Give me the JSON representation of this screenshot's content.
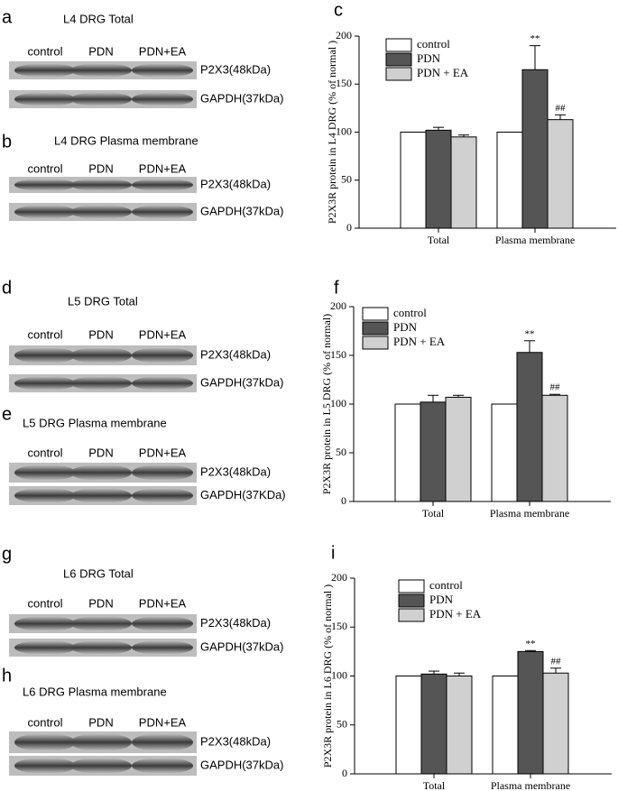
{
  "blots": [
    {
      "letter": "a",
      "title": "L4 DRG Total",
      "lanes": [
        "control",
        "PDN",
        "PDN+EA"
      ],
      "bands": [
        "P2X3(48kDa)",
        "GAPDH(37kDa)"
      ]
    },
    {
      "letter": "b",
      "title": "L4 DRG Plasma membrane",
      "lanes": [
        "control",
        "PDN",
        "PDN+EA"
      ],
      "bands": [
        "P2X3(48kDa)",
        "GAPDH(37kDa)"
      ]
    },
    {
      "letter": "d",
      "title": "L5 DRG Total",
      "lanes": [
        "control",
        "PDN",
        "PDN+EA"
      ],
      "bands": [
        "P2X3(48kDa)",
        "GAPDH(37kDa)"
      ]
    },
    {
      "letter": "e",
      "title": "L5 DRG Plasma membrane",
      "lanes": [
        "control",
        "PDN",
        "PDN+EA"
      ],
      "bands": [
        "P2X3(48kDa)",
        "GAPDH(37KDa)"
      ]
    },
    {
      "letter": "g",
      "title": "L6 DRG Total",
      "lanes": [
        "control",
        "PDN",
        "PDN+EA"
      ],
      "bands": [
        "P2X3(48kDa)",
        "GAPDH(37kDa)"
      ]
    },
    {
      "letter": "h",
      "title": "L6 DRG Plasma membrane",
      "lanes": [
        "control",
        "PDN",
        "PDN+EA"
      ],
      "bands": [
        "P2X3(48kDa)",
        "GAPDH(37kDa)"
      ]
    }
  ],
  "chart_data": [
    {
      "type": "bar",
      "panel": "c",
      "y_label": "P2X3R protein in L4 DRG (% of normal )",
      "categories": [
        "Total",
        "Plasma membrane"
      ],
      "series": [
        {
          "name": "control",
          "color": "#ffffff",
          "values": [
            100,
            100
          ]
        },
        {
          "name": "PDN",
          "color": "#555555",
          "values": [
            102,
            165
          ],
          "errors": [
            3,
            25
          ],
          "significance": [
            null,
            "**"
          ]
        },
        {
          "name": "PDN + EA",
          "color": "#d0d0d0",
          "values": [
            95,
            113
          ],
          "errors": [
            2,
            5
          ],
          "significance": [
            null,
            "##"
          ]
        }
      ],
      "ylim": [
        0,
        200
      ],
      "yticks": [
        0,
        50,
        100,
        150,
        200
      ]
    },
    {
      "type": "bar",
      "panel": "f",
      "y_label": "P2X3R protein in L5 DRG (% of normal)",
      "categories": [
        "Total",
        "Plasma membrane"
      ],
      "series": [
        {
          "name": "control",
          "color": "#ffffff",
          "values": [
            100,
            100
          ]
        },
        {
          "name": "PDN",
          "color": "#555555",
          "values": [
            102,
            153
          ],
          "errors": [
            7,
            12
          ],
          "significance": [
            null,
            "**"
          ]
        },
        {
          "name": "PDN + EA",
          "color": "#d0d0d0",
          "values": [
            107,
            109
          ],
          "errors": [
            2,
            1
          ],
          "significance": [
            null,
            "##"
          ]
        }
      ],
      "ylim": [
        0,
        200
      ],
      "yticks": [
        0,
        50,
        100,
        150,
        200
      ]
    },
    {
      "type": "bar",
      "panel": "i",
      "y_label": "P2X3R protein in L6 DRG (% of normal )",
      "categories": [
        "Total",
        "Plasma membrane"
      ],
      "series": [
        {
          "name": "control",
          "color": "#ffffff",
          "values": [
            100,
            100
          ]
        },
        {
          "name": "PDN",
          "color": "#555555",
          "values": [
            102,
            125
          ],
          "errors": [
            3,
            1
          ],
          "significance": [
            null,
            "**"
          ]
        },
        {
          "name": "PDN + EA",
          "color": "#d0d0d0",
          "values": [
            100,
            103
          ],
          "errors": [
            3,
            5
          ],
          "significance": [
            null,
            "##"
          ]
        }
      ],
      "ylim": [
        0,
        200
      ],
      "yticks": [
        0,
        50,
        100,
        150,
        200
      ]
    }
  ]
}
